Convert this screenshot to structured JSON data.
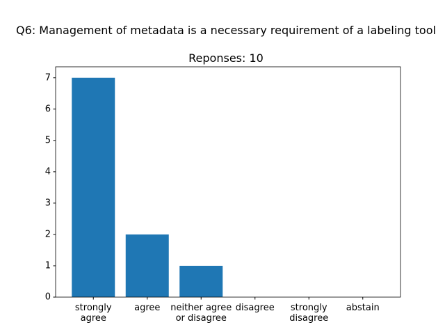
{
  "chart_data": {
    "type": "bar",
    "title": "Q6: Management of metadata is a necessary requirement of a labeling tool",
    "subtitle": "Reponses: 10",
    "categories": [
      "strongly\nagree",
      "agree",
      "neither agree\nor disagree",
      "disagree",
      "strongly\ndisagree",
      "abstain"
    ],
    "values": [
      7,
      2,
      1,
      0,
      0,
      0
    ],
    "color": "#1f77b4",
    "ylim": [
      0,
      7.35
    ],
    "yticks": [
      0,
      1,
      2,
      3,
      4,
      5,
      6,
      7
    ],
    "grid": false
  }
}
